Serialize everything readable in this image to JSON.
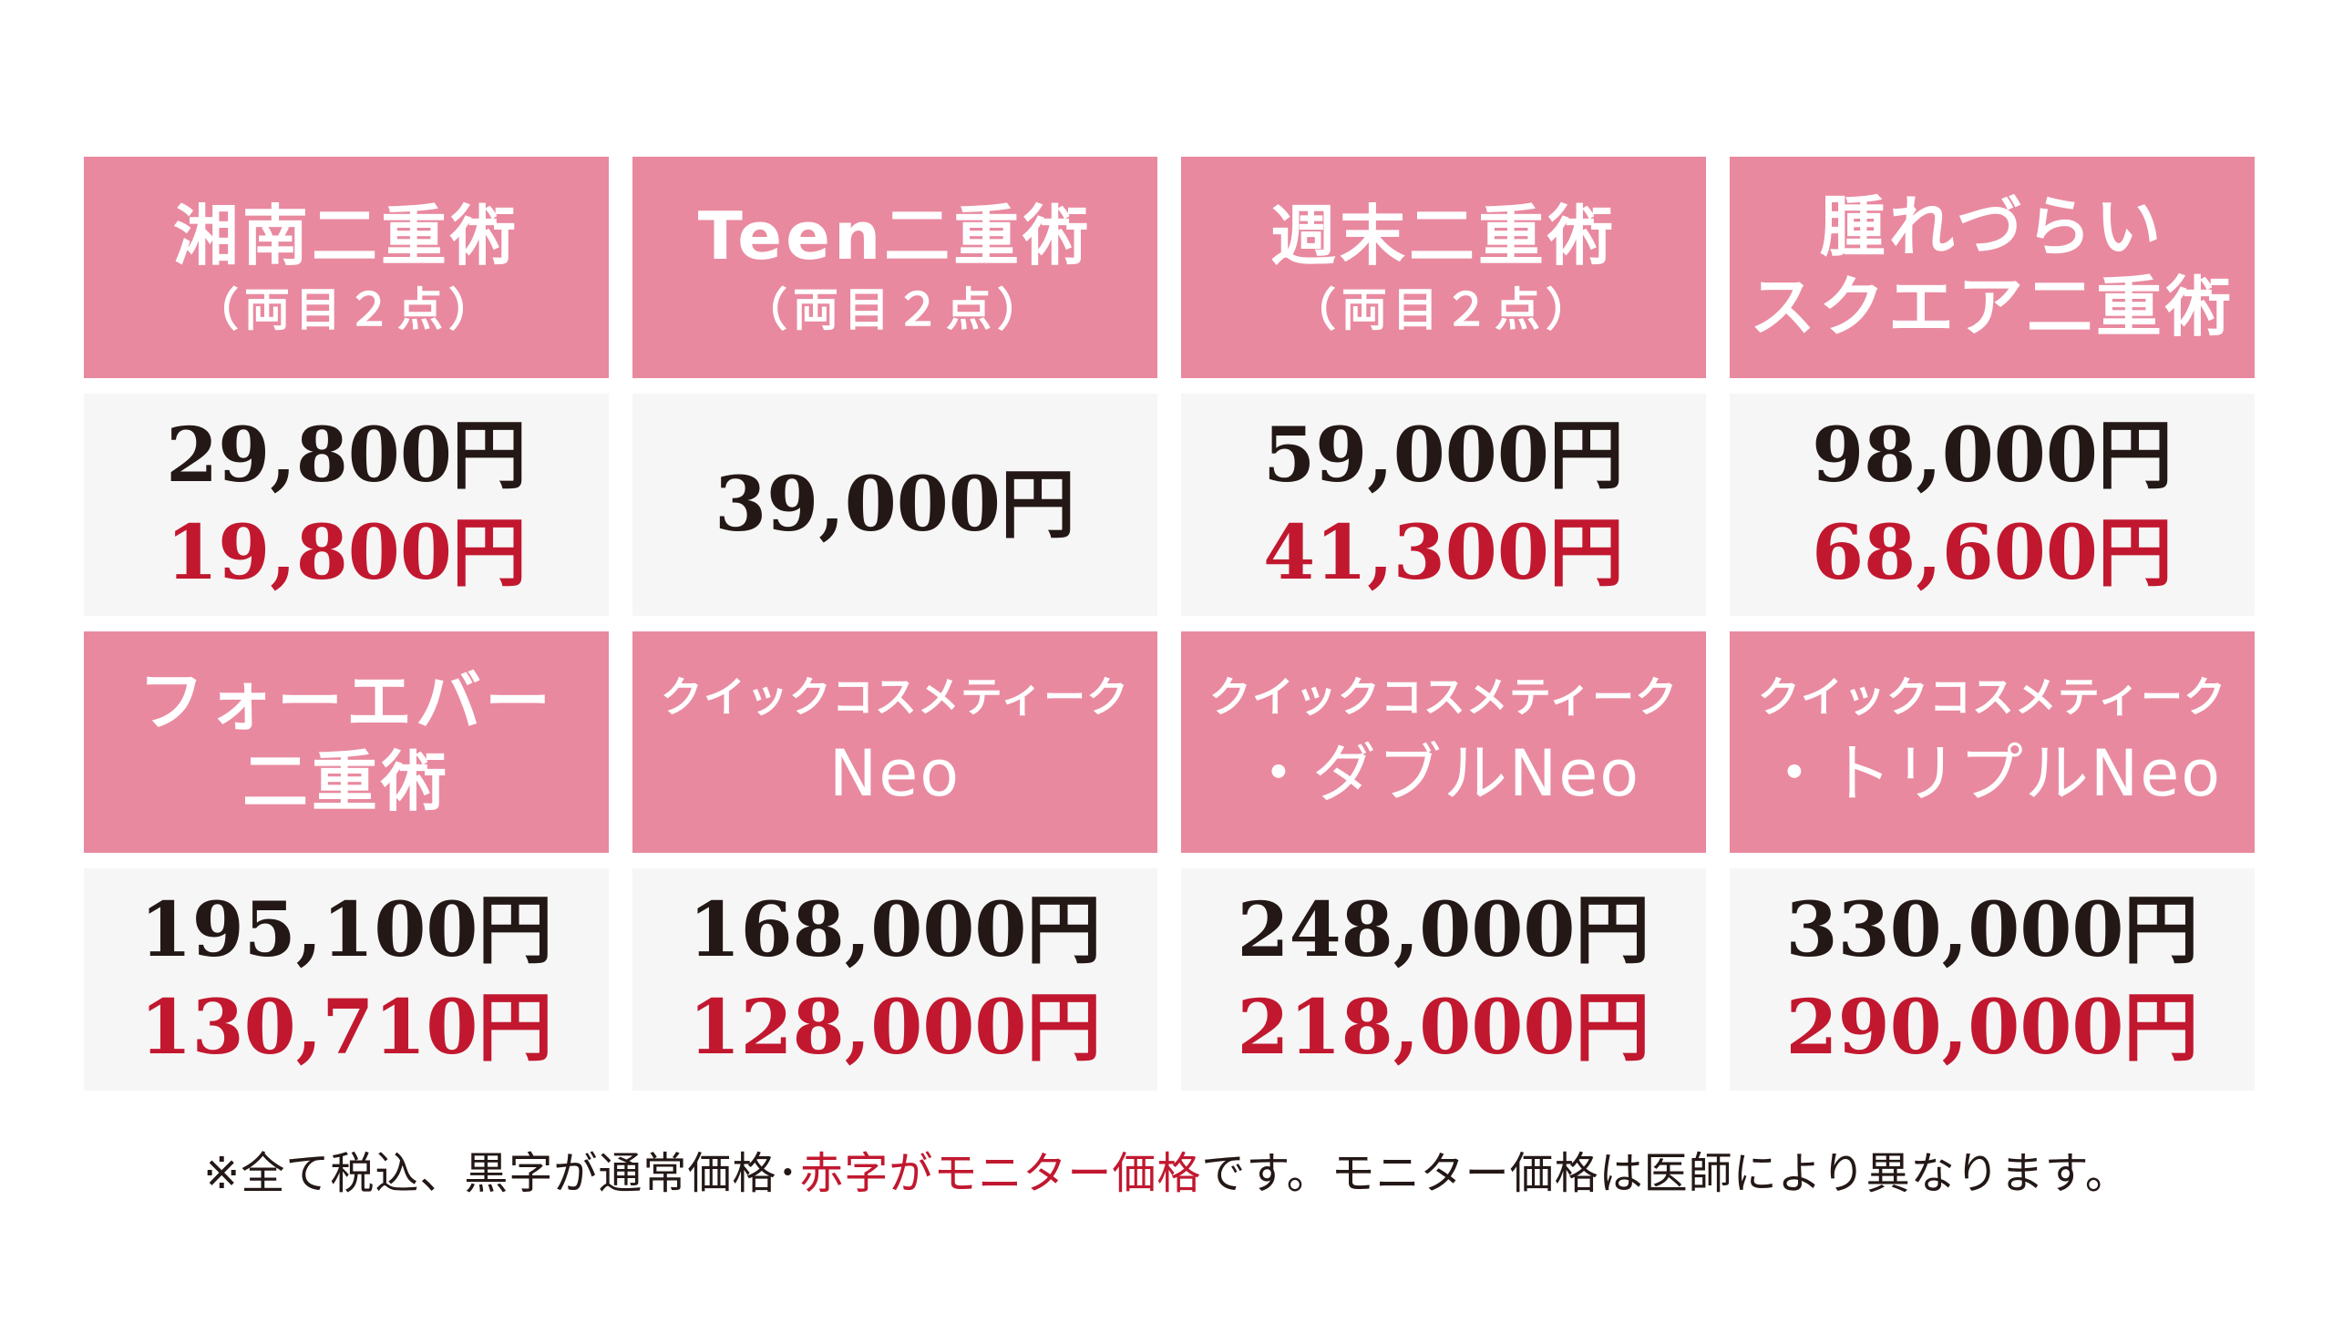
{
  "rows": [
    {
      "cards": [
        {
          "title_lines": [
            "湘南二重術"
          ],
          "subtitle": "（両目２点）",
          "price_regular": "29,800円",
          "price_monitor": "19,800円"
        },
        {
          "title_lines": [
            "Teen二重術"
          ],
          "subtitle": "（両目２点）",
          "price_regular": "39,000円",
          "price_monitor": ""
        },
        {
          "title_lines": [
            "週末二重術"
          ],
          "subtitle": "（両目２点）",
          "price_regular": "59,000円",
          "price_monitor": "41,300円"
        },
        {
          "title_lines": [
            "腫れづらい",
            "スクエア二重術"
          ],
          "subtitle": "",
          "price_regular": "98,000円",
          "price_monitor": "68,600円"
        }
      ]
    },
    {
      "cards": [
        {
          "title_lines": [
            "フォーエバー",
            "二重術"
          ],
          "subtitle": "",
          "price_regular": "195,100円",
          "price_monitor": "130,710円"
        },
        {
          "title_small": "クイックコスメティーク",
          "title_neo": "Neo",
          "price_regular": "168,000円",
          "price_monitor": "128,000円"
        },
        {
          "title_small": "クイックコスメティーク",
          "title_neo": "・ダブルNeo",
          "price_regular": "248,000円",
          "price_monitor": "218,000円"
        },
        {
          "title_small": "クイックコスメティーク",
          "title_neo": "・トリプルNeo",
          "price_regular": "330,000円",
          "price_monitor": "290,000円"
        }
      ]
    }
  ],
  "footnote": {
    "part1": "※全て税込、黒字が通常価格･",
    "part2_red": "赤字がモニター価格",
    "part3": "です。モニター価格は医師により異なります。"
  },
  "colors": {
    "header_pink": "#e8899f",
    "price_bg": "#f6f6f6",
    "regular_text": "#231816",
    "monitor_red": "#c1182f"
  }
}
